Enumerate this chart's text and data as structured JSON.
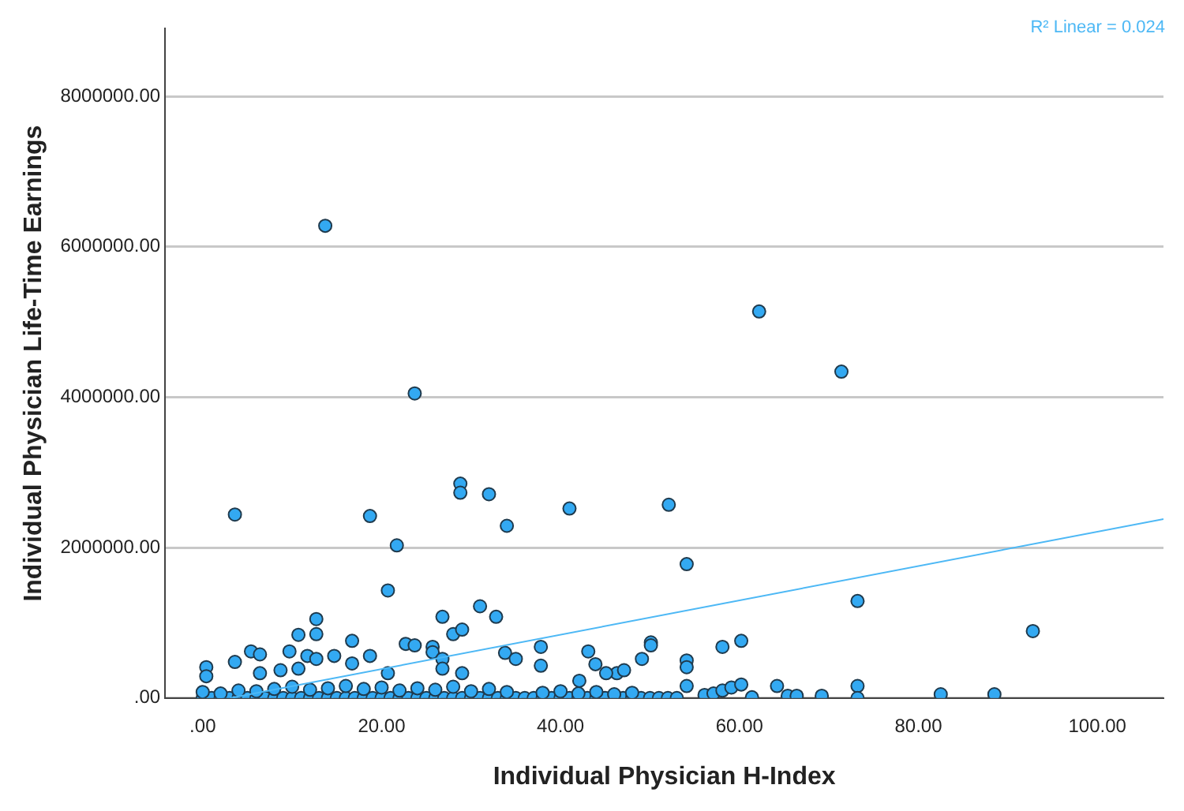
{
  "chart_data": {
    "type": "scatter",
    "xlabel": "Individual Physician H-Index",
    "ylabel": "Individual Physician Life-Time Earnings",
    "xlim": [
      -4.2,
      107.4
    ],
    "ylim": [
      0,
      8900000
    ],
    "xticks": [
      {
        "value": 0,
        "label": ".00"
      },
      {
        "value": 20,
        "label": "20.00"
      },
      {
        "value": 40,
        "label": "40.00"
      },
      {
        "value": 60,
        "label": "60.00"
      },
      {
        "value": 80,
        "label": "80.00"
      },
      {
        "value": 100,
        "label": "100.00"
      }
    ],
    "yticks": [
      {
        "value": 0,
        "label": ".00"
      },
      {
        "value": 2000000,
        "label": "2000000.00"
      },
      {
        "value": 4000000,
        "label": "4000000.00"
      },
      {
        "value": 6000000,
        "label": "6000000.00"
      },
      {
        "value": 8000000,
        "label": "8000000.00"
      }
    ],
    "grid": "y",
    "legend": false,
    "marker": "circle",
    "annotations": [
      "R² Linear = 0.024"
    ],
    "series": [
      {
        "type": "scatter",
        "color": "#33a9f2",
        "x": [
          13.7,
          62.2,
          23.7,
          71.4,
          3.6,
          18.7,
          21.7,
          28.8,
          28.8,
          32.0,
          34.0,
          41.0,
          52.1,
          54.1,
          20.7,
          31.0,
          26.8,
          32.8,
          12.7,
          10.7,
          12.7,
          28.0,
          29.0,
          16.7,
          22.7,
          23.7,
          25.7,
          25.7,
          5.4,
          6.4,
          9.7,
          11.7,
          18.7,
          3.6,
          33.8,
          35.0,
          37.8,
          37.8,
          43.1,
          43.9,
          46.3,
          47.1,
          49.1,
          50.1,
          50.1,
          54.1,
          54.1,
          54.1,
          0.4,
          0.4,
          12.7,
          14.7,
          26.8,
          26.8,
          8.7,
          10.7,
          16.7,
          20.7,
          29.0,
          6.4,
          45.1,
          42.1,
          73.2,
          92.8,
          58.1,
          60.2,
          64.2,
          73.2,
          82.5,
          88.5,
          69.2,
          73.2,
          61.4,
          65.4,
          66.4,
          56.1,
          57.1,
          58.1,
          59.1,
          60.2,
          0,
          1,
          2,
          3,
          4,
          5,
          6,
          7,
          8,
          9,
          10,
          11,
          12,
          13,
          14,
          15,
          16,
          17,
          18,
          19,
          20,
          21,
          22,
          23,
          24,
          25,
          26,
          27,
          28,
          29,
          30,
          31,
          32,
          33,
          34,
          35,
          36,
          37,
          38,
          39,
          40,
          41,
          42,
          43,
          44,
          45,
          47,
          48,
          49,
          50,
          51,
          52,
          53,
          0,
          2,
          4,
          6,
          8,
          10,
          12,
          14,
          16,
          18,
          20,
          22,
          24,
          26,
          28,
          30,
          32,
          34,
          38,
          40,
          42,
          44,
          46,
          48
        ],
        "values": [
          6280000,
          5140000,
          4050000,
          4340000,
          2440000,
          2420000,
          2030000,
          2850000,
          2730000,
          2710000,
          2290000,
          2520000,
          2570000,
          1780000,
          1430000,
          1220000,
          1080000,
          1080000,
          1050000,
          840000,
          850000,
          850000,
          910000,
          760000,
          720000,
          700000,
          680000,
          610000,
          620000,
          580000,
          620000,
          560000,
          560000,
          480000,
          600000,
          520000,
          680000,
          430000,
          620000,
          450000,
          330000,
          370000,
          520000,
          740000,
          700000,
          500000,
          410000,
          160000,
          410000,
          290000,
          520000,
          560000,
          520000,
          390000,
          370000,
          390000,
          460000,
          330000,
          330000,
          330000,
          330000,
          230000,
          1290000,
          890000,
          680000,
          760000,
          160000,
          160000,
          50000,
          50000,
          30000,
          0,
          10000,
          30000,
          30000,
          40000,
          60000,
          100000,
          140000,
          180000,
          0,
          0,
          0,
          0,
          0,
          0,
          0,
          0,
          0,
          0,
          0,
          0,
          0,
          0,
          0,
          0,
          0,
          0,
          0,
          0,
          0,
          0,
          0,
          0,
          0,
          0,
          0,
          0,
          0,
          0,
          0,
          0,
          0,
          0,
          0,
          0,
          0,
          0,
          0,
          0,
          0,
          0,
          0,
          0,
          0,
          0,
          0,
          0,
          0,
          0,
          0,
          0,
          0,
          80000,
          60000,
          100000,
          90000,
          120000,
          150000,
          110000,
          130000,
          160000,
          120000,
          140000,
          100000,
          130000,
          110000,
          150000,
          90000,
          120000,
          80000,
          70000,
          90000,
          60000,
          80000,
          50000,
          70000
        ]
      },
      {
        "type": "line",
        "color": "#4db8f5",
        "marker": "none",
        "x": [
          3.1,
          107.4
        ],
        "values": [
          0,
          2380000
        ]
      }
    ]
  }
}
